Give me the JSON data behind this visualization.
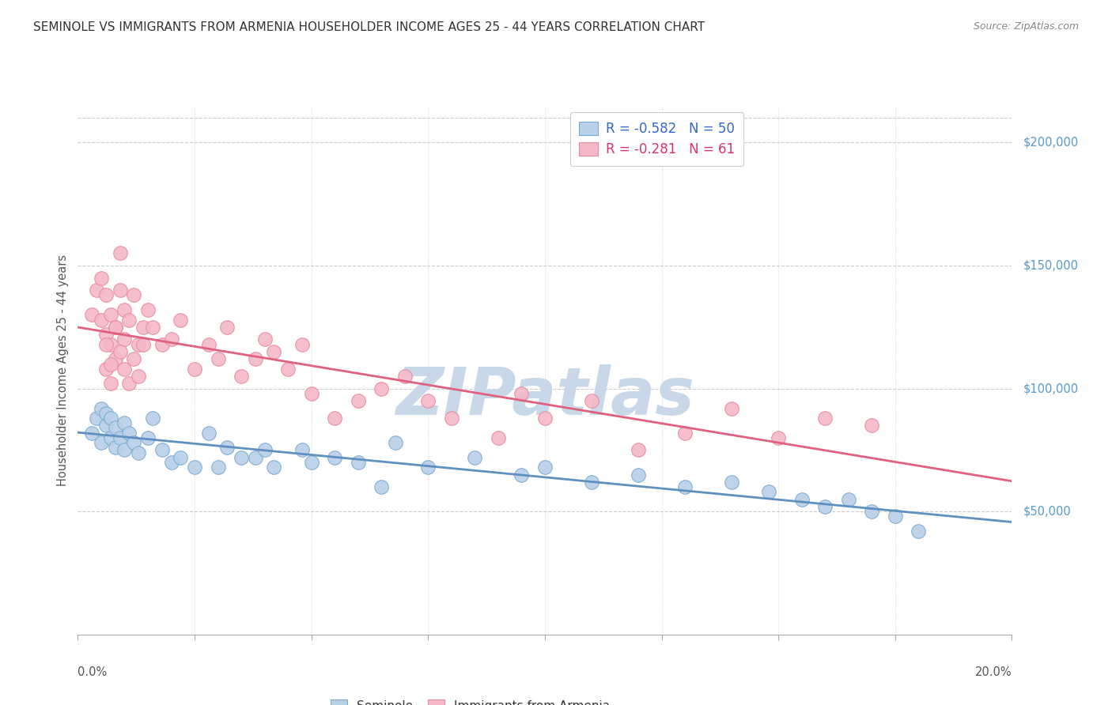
{
  "title": "SEMINOLE VS IMMIGRANTS FROM ARMENIA HOUSEHOLDER INCOME AGES 25 - 44 YEARS CORRELATION CHART",
  "source": "Source: ZipAtlas.com",
  "ylabel": "Householder Income Ages 25 - 44 years",
  "legend_label1": "Seminole",
  "legend_label2": "Immigrants from Armenia",
  "legend_R1": "-0.582",
  "legend_N1": "50",
  "legend_R2": "-0.281",
  "legend_N2": "61",
  "ytick_labels": [
    "$50,000",
    "$100,000",
    "$150,000",
    "$200,000"
  ],
  "ytick_values": [
    50000,
    100000,
    150000,
    200000
  ],
  "color_blue_fill": "#b8d0e8",
  "color_pink_fill": "#f5b8c8",
  "color_blue_edge": "#7aaad0",
  "color_pink_edge": "#e88aa0",
  "color_blue_line": "#6090c0",
  "color_pink_line": "#e06080",
  "color_blue_text": "#3366cc",
  "color_pink_text": "#dd3366",
  "color_right_label": "#5599cc",
  "watermark": "ZIPatlas",
  "watermark_color": "#c8d8e8",
  "seminole_x": [
    0.003,
    0.004,
    0.005,
    0.005,
    0.006,
    0.006,
    0.007,
    0.007,
    0.008,
    0.008,
    0.009,
    0.01,
    0.01,
    0.011,
    0.012,
    0.013,
    0.015,
    0.016,
    0.018,
    0.02,
    0.022,
    0.025,
    0.028,
    0.032,
    0.038,
    0.042,
    0.048,
    0.055,
    0.06,
    0.068,
    0.075,
    0.085,
    0.095,
    0.1,
    0.11,
    0.12,
    0.13,
    0.14,
    0.148,
    0.155,
    0.16,
    0.165,
    0.17,
    0.175,
    0.18,
    0.03,
    0.035,
    0.04,
    0.05,
    0.065
  ],
  "seminole_y": [
    82000,
    88000,
    78000,
    92000,
    85000,
    90000,
    80000,
    88000,
    76000,
    84000,
    80000,
    86000,
    75000,
    82000,
    78000,
    74000,
    80000,
    88000,
    75000,
    70000,
    72000,
    68000,
    82000,
    76000,
    72000,
    68000,
    75000,
    72000,
    70000,
    78000,
    68000,
    72000,
    65000,
    68000,
    62000,
    65000,
    60000,
    62000,
    58000,
    55000,
    52000,
    55000,
    50000,
    48000,
    42000,
    68000,
    72000,
    75000,
    70000,
    60000
  ],
  "armenia_x": [
    0.003,
    0.004,
    0.005,
    0.005,
    0.006,
    0.006,
    0.007,
    0.007,
    0.008,
    0.008,
    0.009,
    0.009,
    0.01,
    0.01,
    0.011,
    0.012,
    0.013,
    0.014,
    0.015,
    0.016,
    0.018,
    0.02,
    0.022,
    0.025,
    0.028,
    0.03,
    0.032,
    0.035,
    0.038,
    0.04,
    0.042,
    0.045,
    0.048,
    0.05,
    0.055,
    0.06,
    0.065,
    0.07,
    0.075,
    0.08,
    0.09,
    0.095,
    0.1,
    0.11,
    0.12,
    0.13,
    0.14,
    0.15,
    0.16,
    0.17,
    0.006,
    0.006,
    0.007,
    0.007,
    0.008,
    0.009,
    0.01,
    0.011,
    0.012,
    0.013,
    0.014
  ],
  "armenia_y": [
    130000,
    140000,
    145000,
    128000,
    138000,
    122000,
    130000,
    118000,
    125000,
    112000,
    140000,
    155000,
    120000,
    132000,
    128000,
    138000,
    118000,
    125000,
    132000,
    125000,
    118000,
    120000,
    128000,
    108000,
    118000,
    112000,
    125000,
    105000,
    112000,
    120000,
    115000,
    108000,
    118000,
    98000,
    88000,
    95000,
    100000,
    105000,
    95000,
    88000,
    80000,
    98000,
    88000,
    95000,
    75000,
    82000,
    92000,
    80000,
    88000,
    85000,
    108000,
    118000,
    102000,
    110000,
    125000,
    115000,
    108000,
    102000,
    112000,
    105000,
    118000
  ]
}
